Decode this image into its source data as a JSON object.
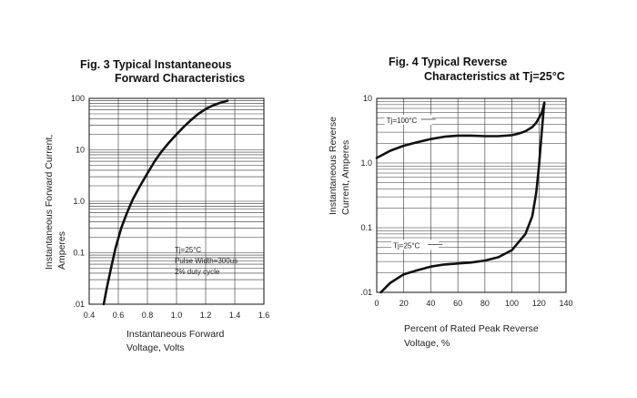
{
  "chart_data": [
    {
      "type": "line",
      "title_line1": "Fig. 3 Typical Instantaneous",
      "title_line2": "Forward Characteristics",
      "xlabel_line1": "Instantaneous Forward",
      "xlabel_line2": "Voltage, Volts",
      "ylabel_line1": "Instantaneous Forward Current,",
      "ylabel_line2": "Amperes",
      "xlim": [
        0.4,
        1.6
      ],
      "ylim": [
        0.01,
        100
      ],
      "yscale": "log",
      "grid": true,
      "x_ticks": [
        "0.4",
        "0.6",
        "0.8",
        "1.0",
        "1.2",
        "1.4",
        "1.6"
      ],
      "y_ticks": [
        ".01",
        "0.1",
        "1.0",
        "10",
        "100"
      ],
      "annotation": [
        "Tj=25°C",
        "Pulse Width=300us",
        "2% duty cycle"
      ],
      "series": [
        {
          "x": [
            0.5,
            0.52,
            0.55,
            0.58,
            0.62,
            0.66,
            0.7,
            0.75,
            0.8,
            0.85,
            0.9,
            0.95,
            1.0,
            1.05,
            1.1,
            1.15,
            1.2,
            1.25,
            1.3,
            1.35
          ],
          "y": [
            0.01,
            0.02,
            0.05,
            0.12,
            0.3,
            0.6,
            1.1,
            2.0,
            3.5,
            6.0,
            9.5,
            14,
            20,
            28,
            38,
            50,
            62,
            73,
            82,
            90
          ]
        }
      ]
    },
    {
      "type": "line",
      "title_line1": "Fig. 4 Typical Reverse",
      "title_line2": "Characteristics at Tj=25°C",
      "xlabel_line1": "Percent of Rated Peak Reverse",
      "xlabel_line2": "Voltage, %",
      "ylabel_line1": "Instantaneous Reverse",
      "ylabel_line2": "Current, Amperes",
      "xlim": [
        0,
        140
      ],
      "ylim": [
        0.01,
        10
      ],
      "yscale": "log",
      "grid": true,
      "x_ticks": [
        "0",
        "20",
        "40",
        "60",
        "80",
        "100",
        "120",
        "140"
      ],
      "y_ticks": [
        ".01",
        "0.1",
        "1.0",
        "10"
      ],
      "series": [
        {
          "name": "Tj=100°C",
          "x": [
            0,
            10,
            20,
            30,
            40,
            50,
            60,
            70,
            80,
            90,
            100,
            105,
            110,
            115,
            118,
            120,
            122,
            123,
            124
          ],
          "y": [
            1.2,
            1.55,
            1.85,
            2.1,
            2.35,
            2.55,
            2.65,
            2.65,
            2.6,
            2.6,
            2.7,
            2.85,
            3.1,
            3.6,
            4.2,
            5.0,
            6.0,
            7.0,
            8.5
          ]
        },
        {
          "name": "Tj=25°C",
          "x": [
            3,
            10,
            20,
            30,
            40,
            50,
            60,
            70,
            80,
            90,
            100,
            110,
            115,
            118,
            120,
            122,
            123,
            123.5,
            124
          ],
          "y": [
            0.01,
            0.014,
            0.019,
            0.022,
            0.025,
            0.027,
            0.028,
            0.029,
            0.031,
            0.035,
            0.045,
            0.08,
            0.15,
            0.35,
            0.9,
            3.0,
            5.0,
            7.0,
            8.5
          ]
        }
      ]
    }
  ]
}
